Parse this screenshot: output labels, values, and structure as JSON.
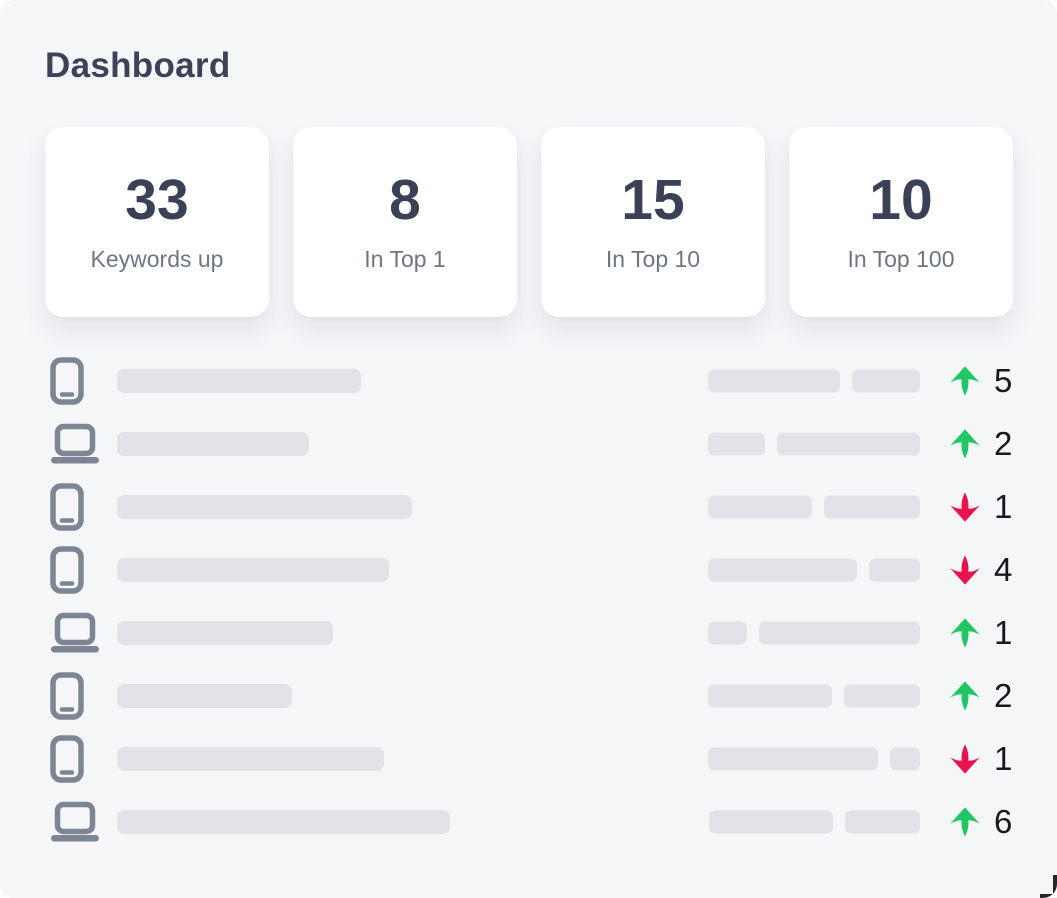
{
  "page": {
    "title": "Dashboard"
  },
  "stats": [
    {
      "value": "33",
      "label": "Keywords up"
    },
    {
      "value": "8",
      "label": "In Top 1"
    },
    {
      "value": "15",
      "label": "In Top 10"
    },
    {
      "value": "10",
      "label": "In Top 100"
    }
  ],
  "keywords": {
    "rows": [
      {
        "device": "phone",
        "icon": "phone-icon",
        "name_width": 244,
        "rank_widths": [
          132,
          68
        ],
        "direction": "up",
        "change": "5"
      },
      {
        "device": "laptop",
        "icon": "laptop-icon",
        "name_width": 192,
        "rank_widths": [
          57,
          143
        ],
        "direction": "up",
        "change": "2"
      },
      {
        "device": "phone",
        "icon": "phone-icon",
        "name_width": 295,
        "rank_widths": [
          104,
          96
        ],
        "direction": "down",
        "change": "1"
      },
      {
        "device": "phone",
        "icon": "phone-icon",
        "name_width": 272,
        "rank_widths": [
          149,
          51
        ],
        "direction": "down",
        "change": "4"
      },
      {
        "device": "laptop",
        "icon": "laptop-icon",
        "name_width": 216,
        "rank_widths": [
          39,
          161
        ],
        "direction": "up",
        "change": "1"
      },
      {
        "device": "phone",
        "icon": "phone-icon",
        "name_width": 175,
        "rank_widths": [
          124,
          76
        ],
        "direction": "up",
        "change": "2"
      },
      {
        "device": "phone",
        "icon": "phone-icon",
        "name_width": 267,
        "rank_widths": [
          170,
          30
        ],
        "direction": "down",
        "change": "1"
      },
      {
        "device": "laptop",
        "icon": "laptop-icon",
        "name_width": 333,
        "rank_widths": [
          124,
          75
        ],
        "direction": "up",
        "change": "6"
      }
    ]
  },
  "colors": {
    "up_arrow": "#1fc662",
    "down_arrow": "#e8124e",
    "heading": "#3b4259",
    "stat_value": "#3a4156",
    "stat_label": "#6e7584",
    "device_icon": "#7b8594",
    "skeleton_bar": "#e2e3e8",
    "background": "#f5f6f8"
  }
}
